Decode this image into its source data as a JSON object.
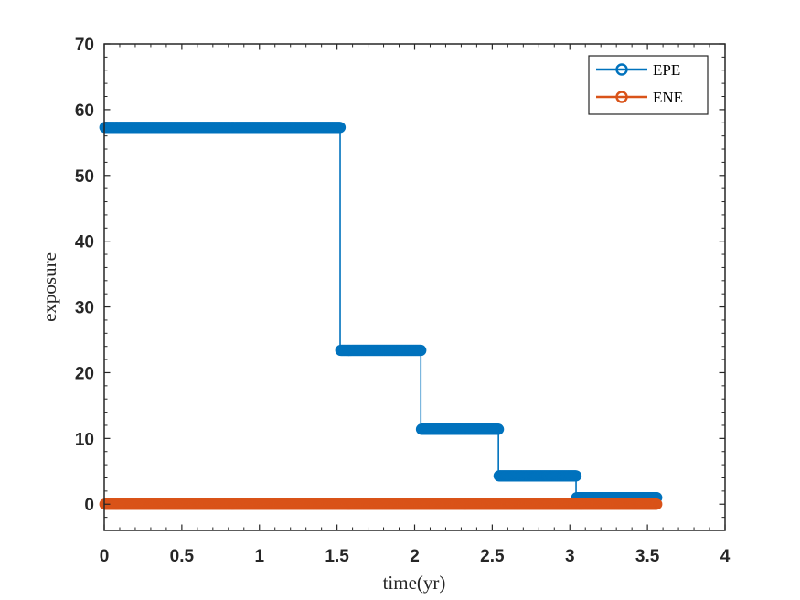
{
  "chart_data": {
    "type": "line",
    "title": "",
    "xlabel": "time(yr)",
    "ylabel": "exposure",
    "xlim": [
      0,
      4
    ],
    "ylim": [
      -4,
      70
    ],
    "xticks": [
      0,
      0.5,
      1,
      1.5,
      2,
      2.5,
      3,
      3.5,
      4
    ],
    "xtick_labels": [
      "0",
      "0.5",
      "1",
      "1.5",
      "2",
      "2.5",
      "3",
      "3.5",
      "4"
    ],
    "yticks": [
      0,
      10,
      20,
      30,
      40,
      50,
      60,
      70
    ],
    "ytick_labels": [
      "0",
      "10",
      "20",
      "30",
      "40",
      "50",
      "60",
      "70"
    ],
    "grid": false,
    "legend_position": "top-right",
    "marker": "circle",
    "series": [
      {
        "name": "EPE",
        "color": "#0072BD",
        "segments": [
          {
            "x_start": 0.0,
            "x_end": 1.52,
            "y": 57.3
          },
          {
            "x_start": 1.52,
            "x_end": 2.04,
            "y": 23.4
          },
          {
            "x_start": 2.04,
            "x_end": 2.54,
            "y": 11.4
          },
          {
            "x_start": 2.54,
            "x_end": 3.04,
            "y": 4.3
          },
          {
            "x_start": 3.04,
            "x_end": 3.56,
            "y": 1.0
          }
        ]
      },
      {
        "name": "ENE",
        "color": "#D95319",
        "segments": [
          {
            "x_start": 0.0,
            "x_end": 3.56,
            "y": 0.0
          }
        ]
      }
    ]
  }
}
